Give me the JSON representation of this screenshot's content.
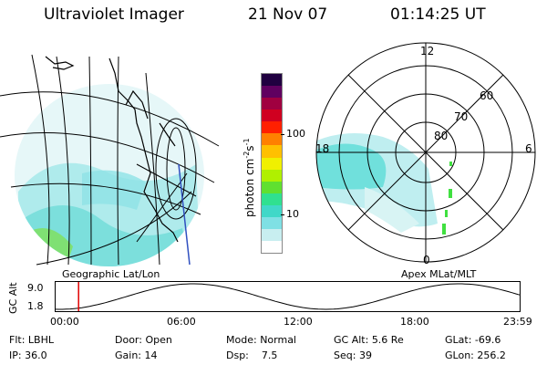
{
  "header": {
    "instrument": "Ultraviolet Imager",
    "date": "21 Nov 07",
    "time": "01:14:25 UT"
  },
  "panels": {
    "left_label": "Geographic Lat/Lon",
    "right_label": "Apex MLat/MLT"
  },
  "colorbar": {
    "label": "photon cm",
    "label_exp1": "-2",
    "label_s": "s",
    "label_exp2": "-1",
    "ticks": [
      "100",
      "10"
    ],
    "colors": [
      "#ffffff",
      "#c8eef0",
      "#7fe0e4",
      "#40d8c8",
      "#30e090",
      "#60e030",
      "#b0f000",
      "#f0f000",
      "#ffc000",
      "#ff8000",
      "#ff2000",
      "#d00020",
      "#a00040",
      "#600060",
      "#200040"
    ]
  },
  "polar": {
    "lat_labels": [
      "80",
      "70",
      "60"
    ],
    "mlt_labels": [
      "12",
      "18",
      "6",
      "0"
    ]
  },
  "altitude_plot": {
    "ylabel": "GC Alt",
    "yticks": [
      "9.0",
      "1.8"
    ],
    "xticks": [
      "00:00",
      "06:00",
      "12:00",
      "18:00",
      "23:59"
    ],
    "current_time_marker": "01:14",
    "marker_color": "#e00000"
  },
  "status": {
    "flt_label": "Flt:",
    "flt_value": "LBHL",
    "ip_label": "IP:",
    "ip_value": "36.0",
    "door_label": "Door:",
    "door_value": "Open",
    "gain_label": "Gain:",
    "gain_value": "14",
    "mode_label": "Mode:",
    "mode_value": "Normal",
    "dsp_label": "Dsp:",
    "dsp_value": "7.5",
    "gcalt_label": "GC Alt:",
    "gcalt_value": "5.6 Re",
    "seq_label": "Seq:",
    "seq_value": "39",
    "glat_label": "GLat:",
    "glat_value": "-69.6",
    "glon_label": "GLon:",
    "glon_value": "256.2"
  }
}
